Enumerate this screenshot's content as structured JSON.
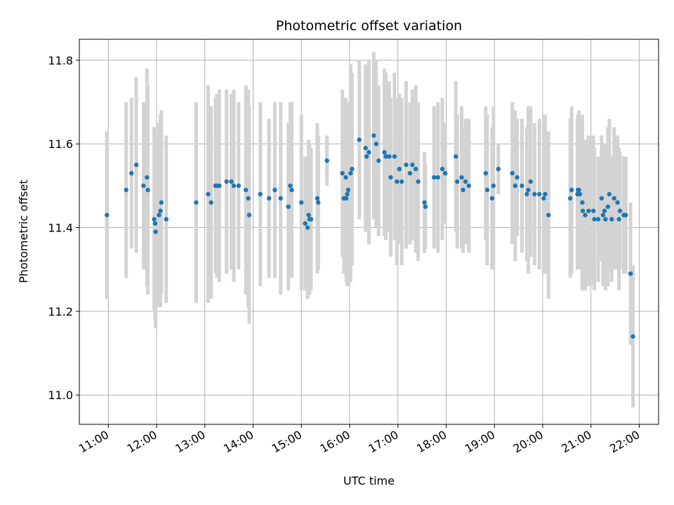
{
  "chart_data": {
    "type": "scatter",
    "title": "Photometric offset variation",
    "xlabel": "UTC time",
    "ylabel": "Photometric offset",
    "x_unit": "hours UTC",
    "xlim": [
      10.4,
      22.4
    ],
    "ylim": [
      10.93,
      11.85
    ],
    "y_ticks": [
      11.0,
      11.2,
      11.4,
      11.6,
      11.8
    ],
    "y_tick_labels": [
      "11.0",
      "11.2",
      "11.4",
      "11.6",
      "11.8"
    ],
    "x_ticks": [
      11,
      12,
      13,
      14,
      15,
      16,
      17,
      18,
      19,
      20,
      21,
      22
    ],
    "x_tick_labels": [
      "11:00",
      "12:00",
      "13:00",
      "14:00",
      "15:00",
      "16:00",
      "17:00",
      "18:00",
      "19:00",
      "20:00",
      "21:00",
      "22:00"
    ],
    "grid": true,
    "colors": {
      "points": "#1f77b4",
      "error_bars": "#d3d3d3",
      "grid": "#b0b0b0"
    },
    "series": [
      {
        "x": [
          10.97,
          11.37,
          11.48,
          11.58,
          11.73,
          11.8,
          11.82,
          11.95,
          11.97,
          11.98,
          12.05,
          12.08,
          12.1,
          12.2,
          12.82,
          13.07,
          13.13,
          13.22,
          13.25,
          13.3,
          13.45,
          13.55,
          13.6,
          13.7,
          13.85,
          13.9,
          13.92,
          14.15,
          14.33,
          14.45,
          14.57,
          14.73,
          14.77,
          14.8,
          15.0,
          15.08,
          15.13,
          15.15,
          15.17,
          15.2,
          15.33,
          15.35,
          15.53,
          15.85,
          15.88,
          15.92,
          15.93,
          15.95,
          15.97,
          16.02,
          16.05,
          16.2,
          16.33,
          16.35,
          16.4,
          16.5,
          16.55,
          16.6,
          16.72,
          16.75,
          16.82,
          16.85,
          16.93,
          16.98,
          17.03,
          17.08,
          17.17,
          17.25,
          17.3,
          17.37,
          17.42,
          17.55,
          17.57,
          17.75,
          17.83,
          17.92,
          17.98,
          18.2,
          18.23,
          18.32,
          18.35,
          18.4,
          18.47,
          18.82,
          18.85,
          18.95,
          18.98,
          19.08,
          19.37,
          19.43,
          19.47,
          19.57,
          19.67,
          19.7,
          19.75,
          19.83,
          19.93,
          20.02,
          20.05,
          20.12,
          20.57,
          20.6,
          20.72,
          20.73,
          20.75,
          20.77,
          20.82,
          20.83,
          20.88,
          20.95,
          21.05,
          21.07,
          21.15,
          21.22,
          21.25,
          21.28,
          21.3,
          21.35,
          21.38,
          21.43,
          21.48,
          21.55,
          21.58,
          21.6,
          21.68,
          21.72,
          21.82,
          21.87
        ],
        "y": [
          11.43,
          11.49,
          11.53,
          11.55,
          11.5,
          11.52,
          11.49,
          11.42,
          11.41,
          11.39,
          11.43,
          11.44,
          11.46,
          11.42,
          11.46,
          11.48,
          11.46,
          11.5,
          11.5,
          11.5,
          11.51,
          11.51,
          11.5,
          11.5,
          11.49,
          11.47,
          11.43,
          11.48,
          11.47,
          11.49,
          11.47,
          11.45,
          11.5,
          11.49,
          11.46,
          11.41,
          11.4,
          11.43,
          11.42,
          11.42,
          11.47,
          11.46,
          11.56,
          11.53,
          11.47,
          11.52,
          11.47,
          11.48,
          11.49,
          11.53,
          11.54,
          11.61,
          11.59,
          11.57,
          11.58,
          11.62,
          11.6,
          11.56,
          11.58,
          11.57,
          11.57,
          11.52,
          11.57,
          11.51,
          11.54,
          11.51,
          11.55,
          11.53,
          11.55,
          11.54,
          11.51,
          11.46,
          11.45,
          11.52,
          11.52,
          11.54,
          11.53,
          11.57,
          11.51,
          11.52,
          11.49,
          11.51,
          11.5,
          11.53,
          11.49,
          11.47,
          11.5,
          11.54,
          11.53,
          11.5,
          11.52,
          11.5,
          11.48,
          11.49,
          11.51,
          11.48,
          11.48,
          11.47,
          11.48,
          11.43,
          11.47,
          11.49,
          11.48,
          11.49,
          11.49,
          11.48,
          11.46,
          11.44,
          11.43,
          11.44,
          11.44,
          11.42,
          11.42,
          11.47,
          11.43,
          11.44,
          11.42,
          11.45,
          11.48,
          11.42,
          11.47,
          11.46,
          11.42,
          11.44,
          11.43,
          11.43,
          11.29,
          11.14
        ],
        "err": [
          0.2,
          0.21,
          0.18,
          0.21,
          0.2,
          0.26,
          0.25,
          0.22,
          0.23,
          0.23,
          0.22,
          0.23,
          0.22,
          0.2,
          0.24,
          0.26,
          0.23,
          0.21,
          0.22,
          0.23,
          0.22,
          0.21,
          0.23,
          0.2,
          0.25,
          0.26,
          0.26,
          0.22,
          0.19,
          0.21,
          0.23,
          0.2,
          0.2,
          0.21,
          0.21,
          0.16,
          0.17,
          0.18,
          0.18,
          0.17,
          0.18,
          0.16,
          0.06,
          0.2,
          0.18,
          0.19,
          0.2,
          0.22,
          0.17,
          0.26,
          0.23,
          0.19,
          0.2,
          0.17,
          0.22,
          0.2,
          0.2,
          0.18,
          0.2,
          0.2,
          0.18,
          0.19,
          0.2,
          0.2,
          0.18,
          0.2,
          0.2,
          0.17,
          0.18,
          0.2,
          0.19,
          0.12,
          0.1,
          0.17,
          0.18,
          0.17,
          0.12,
          0.18,
          0.16,
          0.17,
          0.15,
          0.15,
          0.16,
          0.16,
          0.18,
          0.17,
          0.19,
          0.06,
          0.17,
          0.18,
          0.14,
          0.16,
          0.16,
          0.2,
          0.18,
          0.17,
          0.18,
          0.18,
          0.19,
          0.2,
          0.19,
          0.2,
          0.18,
          0.18,
          0.19,
          0.17,
          0.21,
          0.17,
          0.18,
          0.18,
          0.18,
          0.17,
          0.15,
          0.15,
          0.17,
          0.16,
          0.17,
          0.19,
          0.18,
          0.15,
          0.17,
          0.16,
          0.17,
          0.14,
          0.14,
          0.14,
          0.17,
          0.17
        ]
      }
    ]
  }
}
